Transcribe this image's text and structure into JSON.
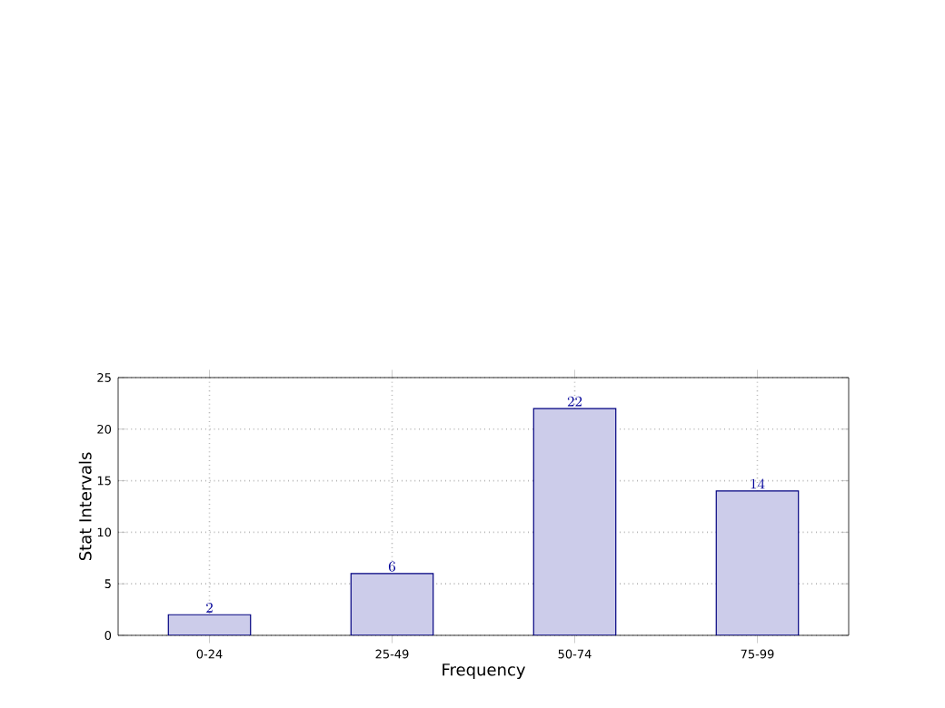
{
  "chart_data": {
    "type": "bar",
    "xlabel": "Frequency",
    "ylabel": "Stat Intervals",
    "categories": [
      "0-24",
      "25-49",
      "50-74",
      "75-99"
    ],
    "values": [
      2,
      6,
      22,
      14
    ],
    "color": "#ccccea",
    "ylim": [
      0,
      25
    ],
    "yticks": [
      0,
      5,
      10,
      15,
      20,
      25
    ],
    "grid": true,
    "data_labels": true
  }
}
